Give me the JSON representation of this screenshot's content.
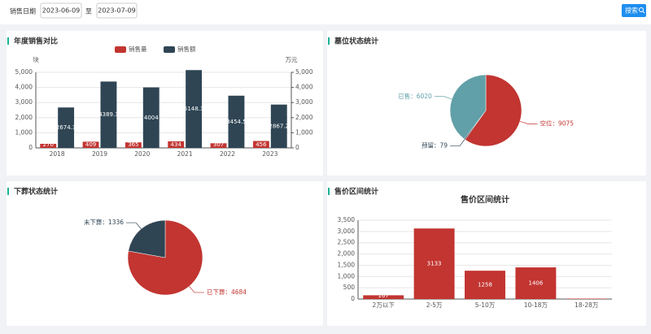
{
  "filter": {
    "label": "销售日期",
    "start": "2023-06-09",
    "separator": "至",
    "end": "2023-07-09",
    "button": "搜索"
  },
  "panels": [
    {
      "title": "年度销售对比",
      "chart": {
        "type": "bar",
        "categories": [
          "2018",
          "2019",
          "2020",
          "2021",
          "2022",
          "2023"
        ],
        "ylabel": "块",
        "y2label": "万元",
        "ylim": [
          0,
          5000
        ],
        "yticks": [
          0,
          {
            "value": 1000,
            "label": "1,000"
          },
          {
            "value": 2000,
            "label": "2,000"
          },
          {
            "value": 3000,
            "label": "3,000"
          },
          {
            "value": 4000,
            "label": "4,000"
          },
          {
            "value": 5000,
            "label": "5,000"
          }
        ],
        "y2lim": [
          0,
          5000
        ],
        "y2ticks": [
          0,
          {
            "value": 1000,
            "label": "1,000"
          },
          {
            "value": 2000,
            "label": "2,000"
          },
          {
            "value": 3000,
            "label": "3,000"
          },
          {
            "value": 4000,
            "label": "4,000"
          },
          {
            "value": 5000,
            "label": "5,000"
          }
        ],
        "series": [
          {
            "name": "销售量",
            "color": "#c23531",
            "values": [
              270,
              409,
              365,
              434,
              307,
              456
            ]
          },
          {
            "name": "销售额",
            "color": "#2f4554",
            "axis": "y2",
            "values": [
              2674.3,
              4389.3,
              4004.0,
              5148.3,
              3454.5,
              2867.2
            ]
          }
        ]
      }
    },
    {
      "title": "墓位状态统计",
      "chart": {
        "type": "pie",
        "values": [
          9075,
          79,
          6020
        ],
        "value_labels": [
          "空位：9075",
          "预留：79",
          "已售：6020"
        ],
        "colors": [
          "#c23531",
          "#2f4554",
          "#61a0a8"
        ]
      }
    },
    {
      "title": "下葬状态统计",
      "chart": {
        "type": "pie",
        "values": [
          4684,
          1336
        ],
        "value_labels": [
          "已下葬：4684",
          "未下葬：1336"
        ],
        "colors": [
          "#c23531",
          "#2f4554"
        ]
      }
    },
    {
      "title": "售价区间统计",
      "chart": {
        "type": "bar",
        "title": "售价区间统计",
        "categories": [
          "2万以下",
          "2-5万",
          "5-10万",
          "10-18万",
          "18-28万"
        ],
        "values": [
          167,
          3133,
          1258,
          1406,
          18
        ],
        "color": "#c23531",
        "ylim": [
          0,
          3500
        ],
        "yticks": [
          0,
          500,
          {
            "value": 1000,
            "label": "1,000"
          },
          {
            "value": 1500,
            "label": "1,500"
          },
          {
            "value": 2000,
            "label": "2,000"
          },
          {
            "value": 2500,
            "label": "2,500"
          },
          {
            "value": 3000,
            "label": "3,000"
          },
          {
            "value": 3500,
            "label": "3,500"
          }
        ]
      }
    }
  ]
}
